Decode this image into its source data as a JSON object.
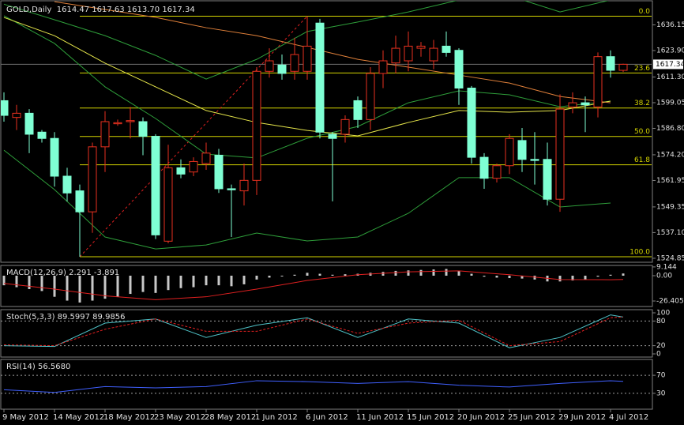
{
  "chart_data": [
    {
      "type": "candlestick",
      "title": "GOLD,Daily  1614.47 1617.63 1613.70 1617.34",
      "categories": [
        "9 May 2012",
        null,
        null,
        null,
        "14 May 2012",
        null,
        null,
        null,
        "18 May 2012",
        null,
        null,
        null,
        "23 May 2012",
        null,
        null,
        null,
        "28 May 2012",
        null,
        null,
        null,
        "1 Jun 2012",
        null,
        null,
        null,
        "6 Jun 2012",
        null,
        null,
        null,
        "11 Jun 2012",
        null,
        null,
        null,
        "15 Jun 2012",
        null,
        null,
        null,
        "20 Jun 2012",
        null,
        null,
        null,
        "25 Jun 2012",
        null,
        null,
        null,
        "29 Jun 2012",
        null,
        null,
        null,
        "4 Jul 2012",
        null
      ],
      "candles": [
        {
          "o": 1600,
          "h": 1604,
          "l": 1590,
          "c": 1593
        },
        {
          "o": 1592,
          "h": 1598,
          "l": 1586,
          "c": 1594
        },
        {
          "o": 1594,
          "h": 1596,
          "l": 1575,
          "c": 1584
        },
        {
          "o": 1585,
          "h": 1586,
          "l": 1580,
          "c": 1582
        },
        {
          "o": 1582,
          "h": 1585,
          "l": 1559,
          "c": 1564
        },
        {
          "o": 1564,
          "h": 1568,
          "l": 1552,
          "c": 1556
        },
        {
          "o": 1557,
          "h": 1560,
          "l": 1525.6,
          "c": 1547
        },
        {
          "o": 1547,
          "h": 1580,
          "l": 1537,
          "c": 1578
        },
        {
          "o": 1578,
          "h": 1595,
          "l": 1566,
          "c": 1590
        },
        {
          "o": 1589,
          "h": 1591,
          "l": 1588,
          "c": 1589.5
        },
        {
          "o": 1590,
          "h": 1597,
          "l": 1582,
          "c": 1590.5
        },
        {
          "o": 1590,
          "h": 1592,
          "l": 1574,
          "c": 1583
        },
        {
          "o": 1583,
          "h": 1584,
          "l": 1534,
          "c": 1536
        },
        {
          "o": 1533,
          "h": 1579,
          "l": 1532,
          "c": 1568
        },
        {
          "o": 1568,
          "h": 1572,
          "l": 1563,
          "c": 1565
        },
        {
          "o": 1566,
          "h": 1573,
          "l": 1564,
          "c": 1571
        },
        {
          "o": 1570,
          "h": 1580,
          "l": 1567,
          "c": 1575
        },
        {
          "o": 1574,
          "h": 1577,
          "l": 1556,
          "c": 1558
        },
        {
          "o": 1558,
          "h": 1560,
          "l": 1535,
          "c": 1557.5
        },
        {
          "o": 1557,
          "h": 1570,
          "l": 1550,
          "c": 1562
        },
        {
          "o": 1562,
          "h": 1616,
          "l": 1555,
          "c": 1614
        },
        {
          "o": 1614,
          "h": 1625,
          "l": 1611,
          "c": 1619
        },
        {
          "o": 1617,
          "h": 1622,
          "l": 1610,
          "c": 1613
        },
        {
          "o": 1614,
          "h": 1630,
          "l": 1610,
          "c": 1622
        },
        {
          "o": 1614,
          "h": 1640.3,
          "l": 1610,
          "c": 1626
        },
        {
          "o": 1637,
          "h": 1639,
          "l": 1582,
          "c": 1585
        },
        {
          "o": 1584,
          "h": 1585,
          "l": 1552,
          "c": 1582
        },
        {
          "o": 1584,
          "h": 1593,
          "l": 1580,
          "c": 1591
        },
        {
          "o": 1600,
          "h": 1602,
          "l": 1587,
          "c": 1591
        },
        {
          "o": 1591,
          "h": 1616,
          "l": 1586,
          "c": 1613
        },
        {
          "o": 1613,
          "h": 1624,
          "l": 1606,
          "c": 1619
        },
        {
          "o": 1618,
          "h": 1631,
          "l": 1613,
          "c": 1625
        },
        {
          "o": 1619,
          "h": 1633,
          "l": 1614,
          "c": 1626
        },
        {
          "o": 1625,
          "h": 1628,
          "l": 1621,
          "c": 1626
        },
        {
          "o": 1619,
          "h": 1629,
          "l": 1615,
          "c": 1625
        },
        {
          "o": 1626,
          "h": 1633,
          "l": 1621,
          "c": 1623
        },
        {
          "o": 1624,
          "h": 1625,
          "l": 1598,
          "c": 1606
        },
        {
          "o": 1606,
          "h": 1607,
          "l": 1570,
          "c": 1573
        },
        {
          "o": 1573,
          "h": 1575,
          "l": 1558,
          "c": 1563
        },
        {
          "o": 1563,
          "h": 1570,
          "l": 1561,
          "c": 1569
        },
        {
          "o": 1569,
          "h": 1584,
          "l": 1565,
          "c": 1582
        },
        {
          "o": 1581,
          "h": 1587,
          "l": 1566,
          "c": 1572
        },
        {
          "o": 1572,
          "h": 1585,
          "l": 1560,
          "c": 1571.5
        },
        {
          "o": 1572,
          "h": 1580,
          "l": 1550,
          "c": 1553
        },
        {
          "o": 1553,
          "h": 1603,
          "l": 1547,
          "c": 1596
        },
        {
          "o": 1597,
          "h": 1604,
          "l": 1594,
          "c": 1599
        },
        {
          "o": 1599,
          "h": 1602,
          "l": 1585,
          "c": 1598
        },
        {
          "o": 1597,
          "h": 1623,
          "l": 1592,
          "c": 1621
        },
        {
          "o": 1621,
          "h": 1624,
          "l": 1611,
          "c": 1614.5
        },
        {
          "o": 1614.47,
          "h": 1617.63,
          "l": 1613.7,
          "c": 1617.34
        }
      ],
      "bull_color": "#e8311f",
      "bear_color": "#7fffd4",
      "lines": [
        {
          "color": "#2e9e3a",
          "x": [
            0,
            4,
            8,
            12,
            16,
            20,
            24,
            28,
            32,
            36,
            40,
            44,
            48
          ],
          "values": [
            1646,
            1638.6,
            1631,
            1621.6,
            1610.3,
            1619.7,
            1633,
            1637.5,
            1642.3,
            1648,
            1650,
            1642.3,
            1648
          ]
        },
        {
          "color": "#2e9e3a",
          "x": [
            0,
            4,
            8,
            12,
            16,
            20,
            24,
            28,
            32,
            36,
            40,
            44,
            48
          ],
          "values": [
            1576.4,
            1557.6,
            1535,
            1529.3,
            1531.2,
            1536.9,
            1533.1,
            1535,
            1546.3,
            1563.3,
            1563.3,
            1549.3,
            1551.2
          ]
        },
        {
          "color": "#2e9e3a",
          "x": [
            0,
            4,
            8,
            12,
            16,
            20,
            24,
            28,
            32,
            36,
            40,
            44,
            48
          ],
          "values": [
            1640.5,
            1627.3,
            1606.6,
            1591.5,
            1574.5,
            1572.7,
            1582.1,
            1587.7,
            1599,
            1604.7,
            1602.8,
            1597.1,
            1599.8
          ]
        },
        {
          "color": "#e6e64a",
          "x": [
            0,
            4,
            8,
            12,
            16,
            20,
            24,
            28,
            32,
            36,
            40,
            44,
            48
          ],
          "values": [
            1639.7,
            1631,
            1617.9,
            1606.6,
            1595.3,
            1589.6,
            1585.8,
            1583.2,
            1589.6,
            1595.3,
            1594.5,
            1595.3,
            1599.8
          ]
        },
        {
          "color": "#e0803a",
          "x": [
            4,
            8,
            12,
            16,
            20,
            24,
            28,
            32,
            36,
            40,
            44,
            48
          ],
          "values": [
            1647.2,
            1643.5,
            1639.7,
            1634.8,
            1631,
            1625.4,
            1619.7,
            1616,
            1612.2,
            1608.4,
            1602,
            1599
          ]
        }
      ],
      "fib_color": "#d4d400",
      "fib_levels": [
        {
          "label": "0.0",
          "price": 1640.3
        },
        {
          "label": "23.6",
          "price": 1613.2
        },
        {
          "label": "38.2",
          "price": 1596.5
        },
        {
          "label": "50.0",
          "price": 1582.95
        },
        {
          "label": "61.8",
          "price": 1569.4
        },
        {
          "label": "100.0",
          "price": 1525.6
        }
      ],
      "current_price": 1617.34,
      "ylim": [
        1523.7,
        1646.5
      ],
      "yticks": [
        1636.15,
        {
          "value": 1623.9,
          "label": "1623.90"
        },
        {
          "value": 1611.3,
          "label": "1611.30"
        },
        1599.05,
        {
          "value": 1586.8,
          "label": "1586.80"
        },
        {
          "value": 1574.2,
          "label": "1574.20"
        },
        1561.95,
        1549.35,
        {
          "value": 1537.1,
          "label": "1537.10"
        },
        1524.85
      ]
    },
    {
      "type": "macd",
      "title": "MACD(12,26,9) 2.291 -3.891",
      "bar_color": "#c8c8c8",
      "values": [
        -10,
        -12,
        -14,
        -16,
        -22,
        -26,
        -28,
        -26,
        -24,
        -22,
        -19,
        -17,
        -18,
        -15,
        -13,
        -12,
        -10,
        -10,
        -11,
        -9,
        -4,
        -2,
        -0.5,
        1,
        3,
        2,
        1,
        1.5,
        2,
        3,
        4,
        5,
        5.5,
        6,
        6.5,
        7,
        5,
        2,
        -1,
        -2,
        -2.5,
        -3,
        -4,
        -6,
        -6,
        -5,
        -4,
        -1,
        1,
        2.291
      ],
      "signal": {
        "color": "#e02020",
        "x": [
          0,
          4,
          8,
          12,
          16,
          20,
          24,
          28,
          32,
          36,
          40,
          44,
          48,
          49
        ],
        "values": [
          -8,
          -14,
          -21,
          -25,
          -22,
          -14,
          -5,
          1,
          4,
          5,
          1,
          -4,
          -4.2,
          -3.891
        ]
      },
      "ylim": [
        -30.5,
        10.7
      ],
      "yticks": [
        9.144,
        {
          "value": 0,
          "label": "0.00"
        },
        -26.405
      ]
    },
    {
      "type": "stochastic",
      "title": "Stoch(5,3,3) 89.5997 89.9856",
      "main": {
        "color": "#4fc3c8",
        "x": [
          0,
          4,
          8,
          12,
          16,
          20,
          24,
          28,
          32,
          36,
          40,
          44,
          48,
          49
        ],
        "values": [
          20,
          18,
          75,
          85,
          40,
          70,
          88,
          40,
          85,
          75,
          15,
          40,
          95,
          89.5997
        ]
      },
      "signal": {
        "color": "#e02020",
        "x": [
          0,
          4,
          8,
          12,
          16,
          20,
          24,
          28,
          32,
          36,
          40,
          44,
          48,
          49
        ],
        "values": [
          22,
          20,
          60,
          85,
          55,
          55,
          85,
          50,
          75,
          82,
          20,
          30,
          88,
          89.9856
        ]
      },
      "levels": [
        80,
        20
      ],
      "ylim": [
        0,
        100
      ],
      "yticks": [
        100,
        80,
        20,
        0
      ]
    },
    {
      "type": "rsi",
      "title": "RSI(14) 56.5680",
      "main": {
        "color": "#4060ff",
        "x": [
          0,
          4,
          8,
          12,
          16,
          20,
          24,
          28,
          32,
          36,
          40,
          44,
          48,
          49
        ],
        "values": [
          38,
          32,
          45,
          42,
          45,
          58,
          56,
          52,
          56,
          48,
          44,
          52,
          58,
          56.568
        ]
      },
      "levels": [
        70,
        30
      ],
      "ylim": [
        0,
        100
      ],
      "yticks": [
        70,
        30
      ]
    }
  ]
}
